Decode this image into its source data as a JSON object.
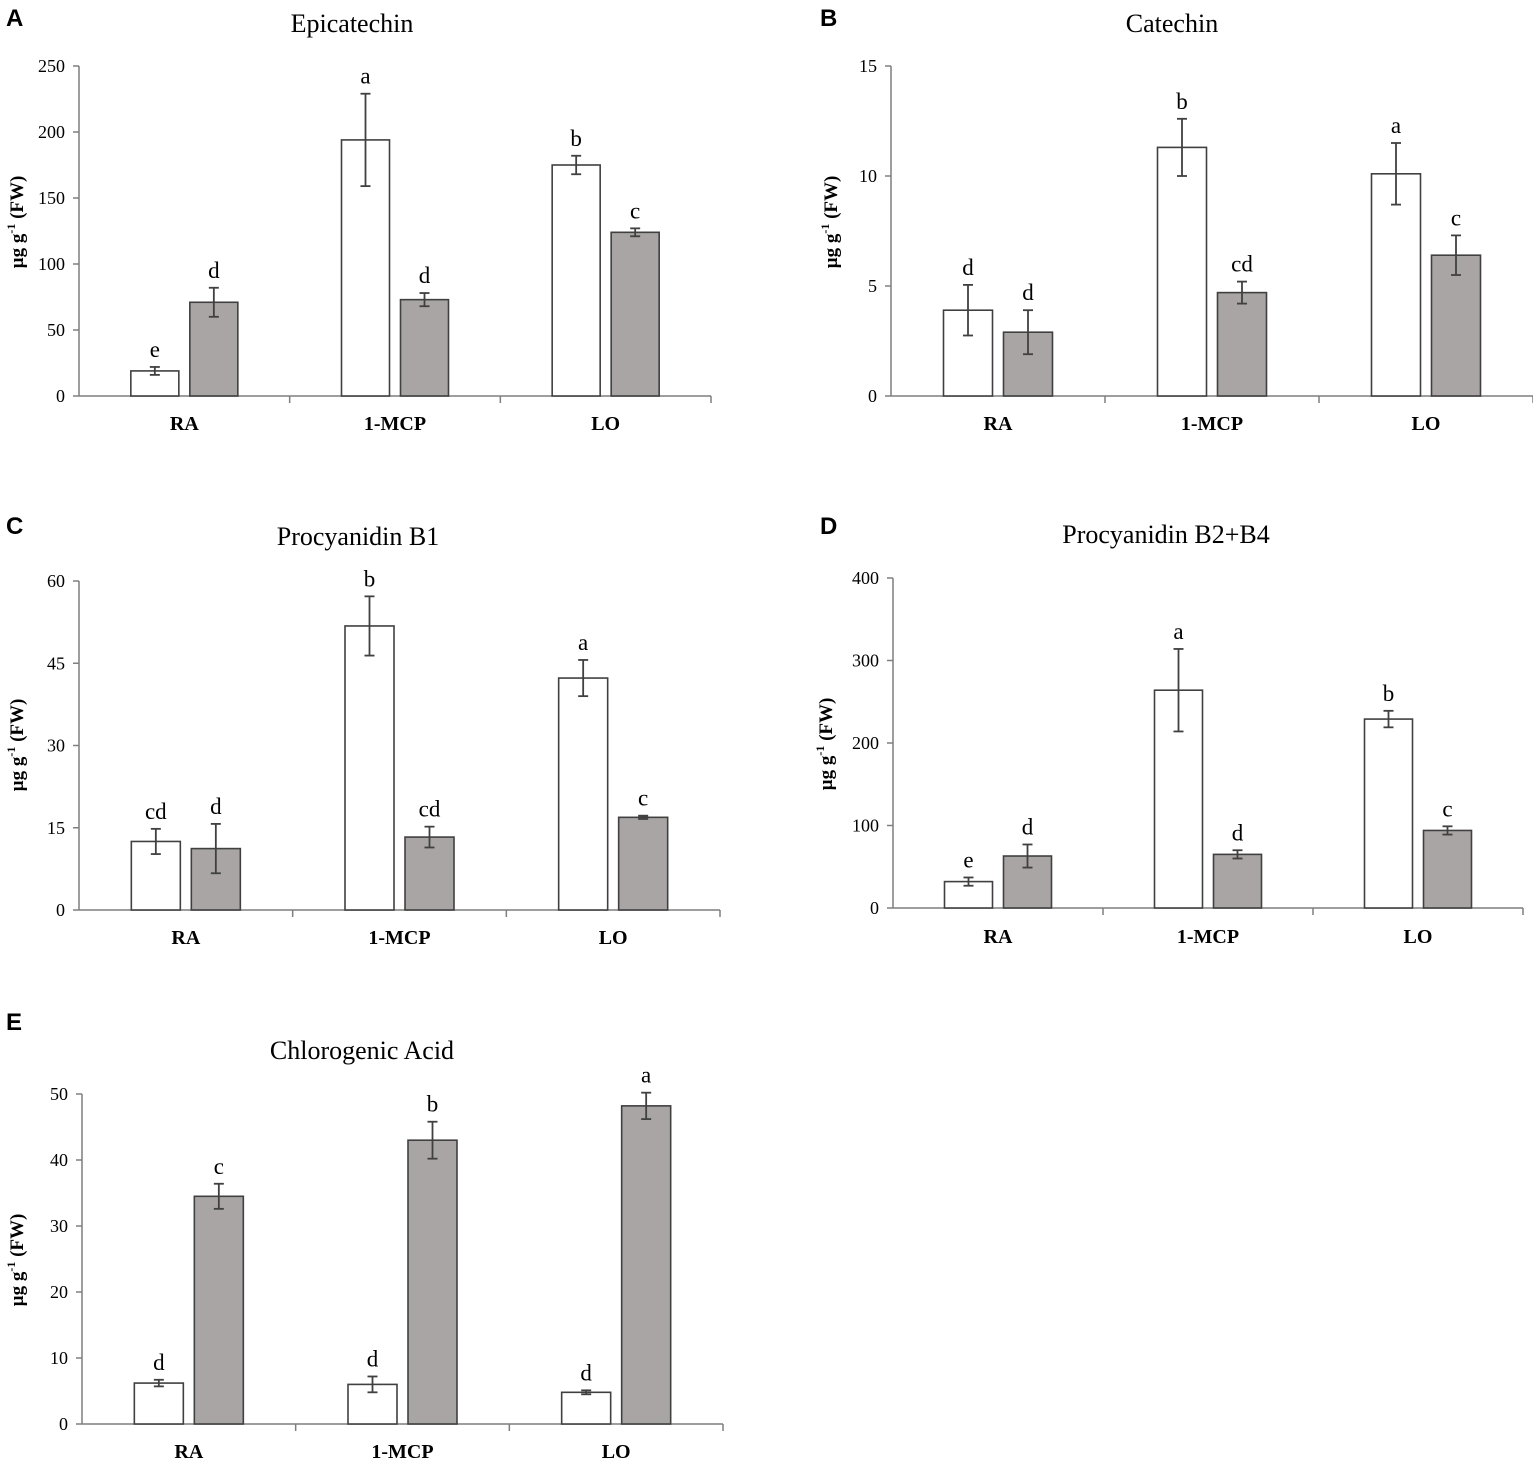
{
  "colors": {
    "axis": "#7f7f7f",
    "bar_stroke": "#404040",
    "series_1_fill": "#ffffff",
    "series_2_fill": "#aaa5a5",
    "error_bar": "#404040",
    "text": "#000000"
  },
  "chart_data": [
    {
      "panel": "A",
      "type": "bar",
      "title": "Epicatechin",
      "ylabel": {
        "base": "µg g",
        "sup": "-1",
        "suffix": " (FW)"
      },
      "ylim": [
        0,
        250
      ],
      "yticks": [
        0,
        50,
        100,
        150,
        200,
        250
      ],
      "ytick_labels": [
        "0",
        "50",
        "100",
        "150",
        "200",
        "250"
      ],
      "categories": [
        "RA",
        "1-MCP",
        "LO"
      ],
      "series": [
        {
          "name": "white bars",
          "values": [
            19,
            194,
            175
          ],
          "errors": [
            3,
            35,
            7
          ],
          "letters": [
            "e",
            "a",
            "b"
          ]
        },
        {
          "name": "grey bars",
          "values": [
            71,
            73,
            124
          ],
          "errors": [
            11,
            5,
            3
          ],
          "letters": [
            "d",
            "d",
            "c"
          ]
        }
      ]
    },
    {
      "panel": "B",
      "type": "bar",
      "title": "Catechin",
      "ylabel": {
        "base": "µg g",
        "sup": "-1",
        "suffix": " (FW)"
      },
      "ylim": [
        0,
        15
      ],
      "yticks": [
        0,
        5,
        10,
        15
      ],
      "ytick_labels": [
        "0",
        "5",
        "10",
        "15"
      ],
      "categories": [
        "RA",
        "1-MCP",
        "LO"
      ],
      "series": [
        {
          "name": "white bars",
          "values": [
            3.9,
            11.3,
            10.1
          ],
          "errors": [
            1.15,
            1.3,
            1.4
          ],
          "letters": [
            "d",
            "b",
            "a"
          ]
        },
        {
          "name": "grey bars",
          "values": [
            2.9,
            4.7,
            6.4
          ],
          "errors": [
            1.0,
            0.5,
            0.9
          ],
          "letters": [
            "d",
            "cd",
            "c"
          ]
        }
      ]
    },
    {
      "panel": "C",
      "type": "bar",
      "title": "Procyanidin  B1",
      "ylabel": {
        "base": "µg g",
        "sup": "-1",
        "suffix": " (FW)"
      },
      "ylim": [
        0,
        60
      ],
      "yticks": [
        0,
        15,
        30,
        45,
        60
      ],
      "ytick_labels": [
        "0",
        "15",
        "30",
        "45",
        "60"
      ],
      "categories": [
        "RA",
        "1-MCP",
        "LO"
      ],
      "series": [
        {
          "name": "white bars",
          "values": [
            12.5,
            51.8,
            42.3
          ],
          "errors": [
            2.3,
            5.4,
            3.3
          ],
          "letters": [
            "cd",
            "b",
            "a"
          ]
        },
        {
          "name": "grey bars",
          "values": [
            11.2,
            13.3,
            16.9
          ],
          "errors": [
            4.5,
            1.9,
            0.3
          ],
          "letters": [
            "d",
            "cd",
            "c"
          ]
        }
      ]
    },
    {
      "panel": "D",
      "type": "bar",
      "title": "Procyanidin  B2+B4",
      "ylabel": {
        "base": "µg g",
        "sup": "-1",
        "suffix": " (FW)"
      },
      "ylim": [
        0,
        400
      ],
      "yticks": [
        0,
        100,
        200,
        300,
        400
      ],
      "ytick_labels": [
        "0",
        "100",
        "200",
        "300",
        "400"
      ],
      "categories": [
        "RA",
        "1-MCP",
        "LO"
      ],
      "series": [
        {
          "name": "white bars",
          "values": [
            32,
            264,
            229
          ],
          "errors": [
            5,
            50,
            10
          ],
          "letters": [
            "e",
            "a",
            "b"
          ]
        },
        {
          "name": "grey bars",
          "values": [
            63,
            65,
            94
          ],
          "errors": [
            14,
            5,
            5
          ],
          "letters": [
            "d",
            "d",
            "c"
          ]
        }
      ]
    },
    {
      "panel": "E",
      "type": "bar",
      "title": "Chlorogenic  Acid",
      "ylabel": {
        "base": "µg g",
        "sup": "-1",
        "suffix": " (FW)"
      },
      "ylim": [
        0,
        50
      ],
      "yticks": [
        0,
        10,
        20,
        30,
        40,
        50
      ],
      "ytick_labels": [
        "0",
        "10",
        "20",
        "30",
        "40",
        "50"
      ],
      "categories": [
        "RA",
        "1-MCP",
        "LO"
      ],
      "series": [
        {
          "name": "white bars",
          "values": [
            6.2,
            6.0,
            4.8
          ],
          "errors": [
            0.5,
            1.2,
            0.3
          ],
          "letters": [
            "d",
            "d",
            "d"
          ]
        },
        {
          "name": "grey bars",
          "values": [
            34.5,
            43.0,
            48.2
          ],
          "errors": [
            1.9,
            2.8,
            2.0
          ],
          "letters": [
            "c",
            "b",
            "a"
          ]
        }
      ]
    }
  ]
}
